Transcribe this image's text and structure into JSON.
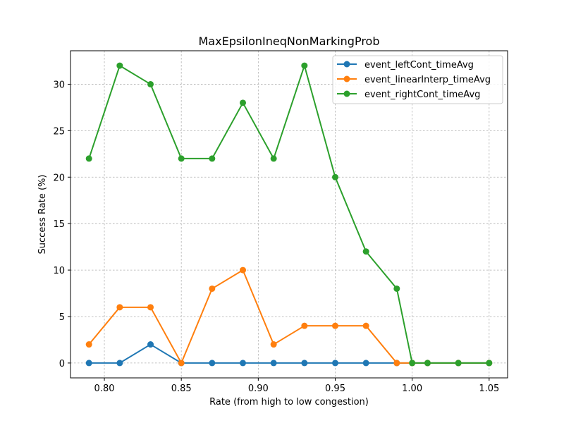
{
  "chart_data": {
    "type": "line",
    "title": "MaxEpsilonIneqNonMarkingProb",
    "xlabel": "Rate (from high to low congestion)",
    "ylabel": "Success Rate (%)",
    "xlim": [
      0.778,
      1.062
    ],
    "ylim": [
      -1.6,
      33.6
    ],
    "xticks": [
      0.8,
      0.85,
      0.9,
      0.95,
      1.0,
      1.05
    ],
    "xtick_labels": [
      "0.80",
      "0.85",
      "0.90",
      "0.95",
      "1.00",
      "1.05"
    ],
    "yticks": [
      0,
      5,
      10,
      15,
      20,
      25,
      30
    ],
    "ytick_labels": [
      "0",
      "5",
      "10",
      "15",
      "20",
      "25",
      "30"
    ],
    "grid": true,
    "legend_position": "top-right",
    "x": [
      0.79,
      0.81,
      0.83,
      0.85,
      0.87,
      0.89,
      0.91,
      0.93,
      0.95,
      0.97,
      0.99,
      1.0,
      1.01,
      1.03,
      1.05
    ],
    "series": [
      {
        "name": "event_leftCont_timeAvg",
        "color": "#1f77b4",
        "values": [
          0,
          0,
          2,
          0,
          0,
          0,
          0,
          0,
          0,
          0,
          0,
          0,
          0,
          0,
          0
        ]
      },
      {
        "name": "event_linearInterp_timeAvg",
        "color": "#ff7f0e",
        "values": [
          2,
          6,
          6,
          0,
          8,
          10,
          2,
          4,
          4,
          4,
          0,
          0,
          0,
          0,
          0
        ]
      },
      {
        "name": "event_rightCont_timeAvg",
        "color": "#2ca02c",
        "values": [
          22,
          32,
          30,
          22,
          22,
          28,
          22,
          32,
          20,
          12,
          8,
          0,
          0,
          0,
          0
        ]
      }
    ]
  }
}
